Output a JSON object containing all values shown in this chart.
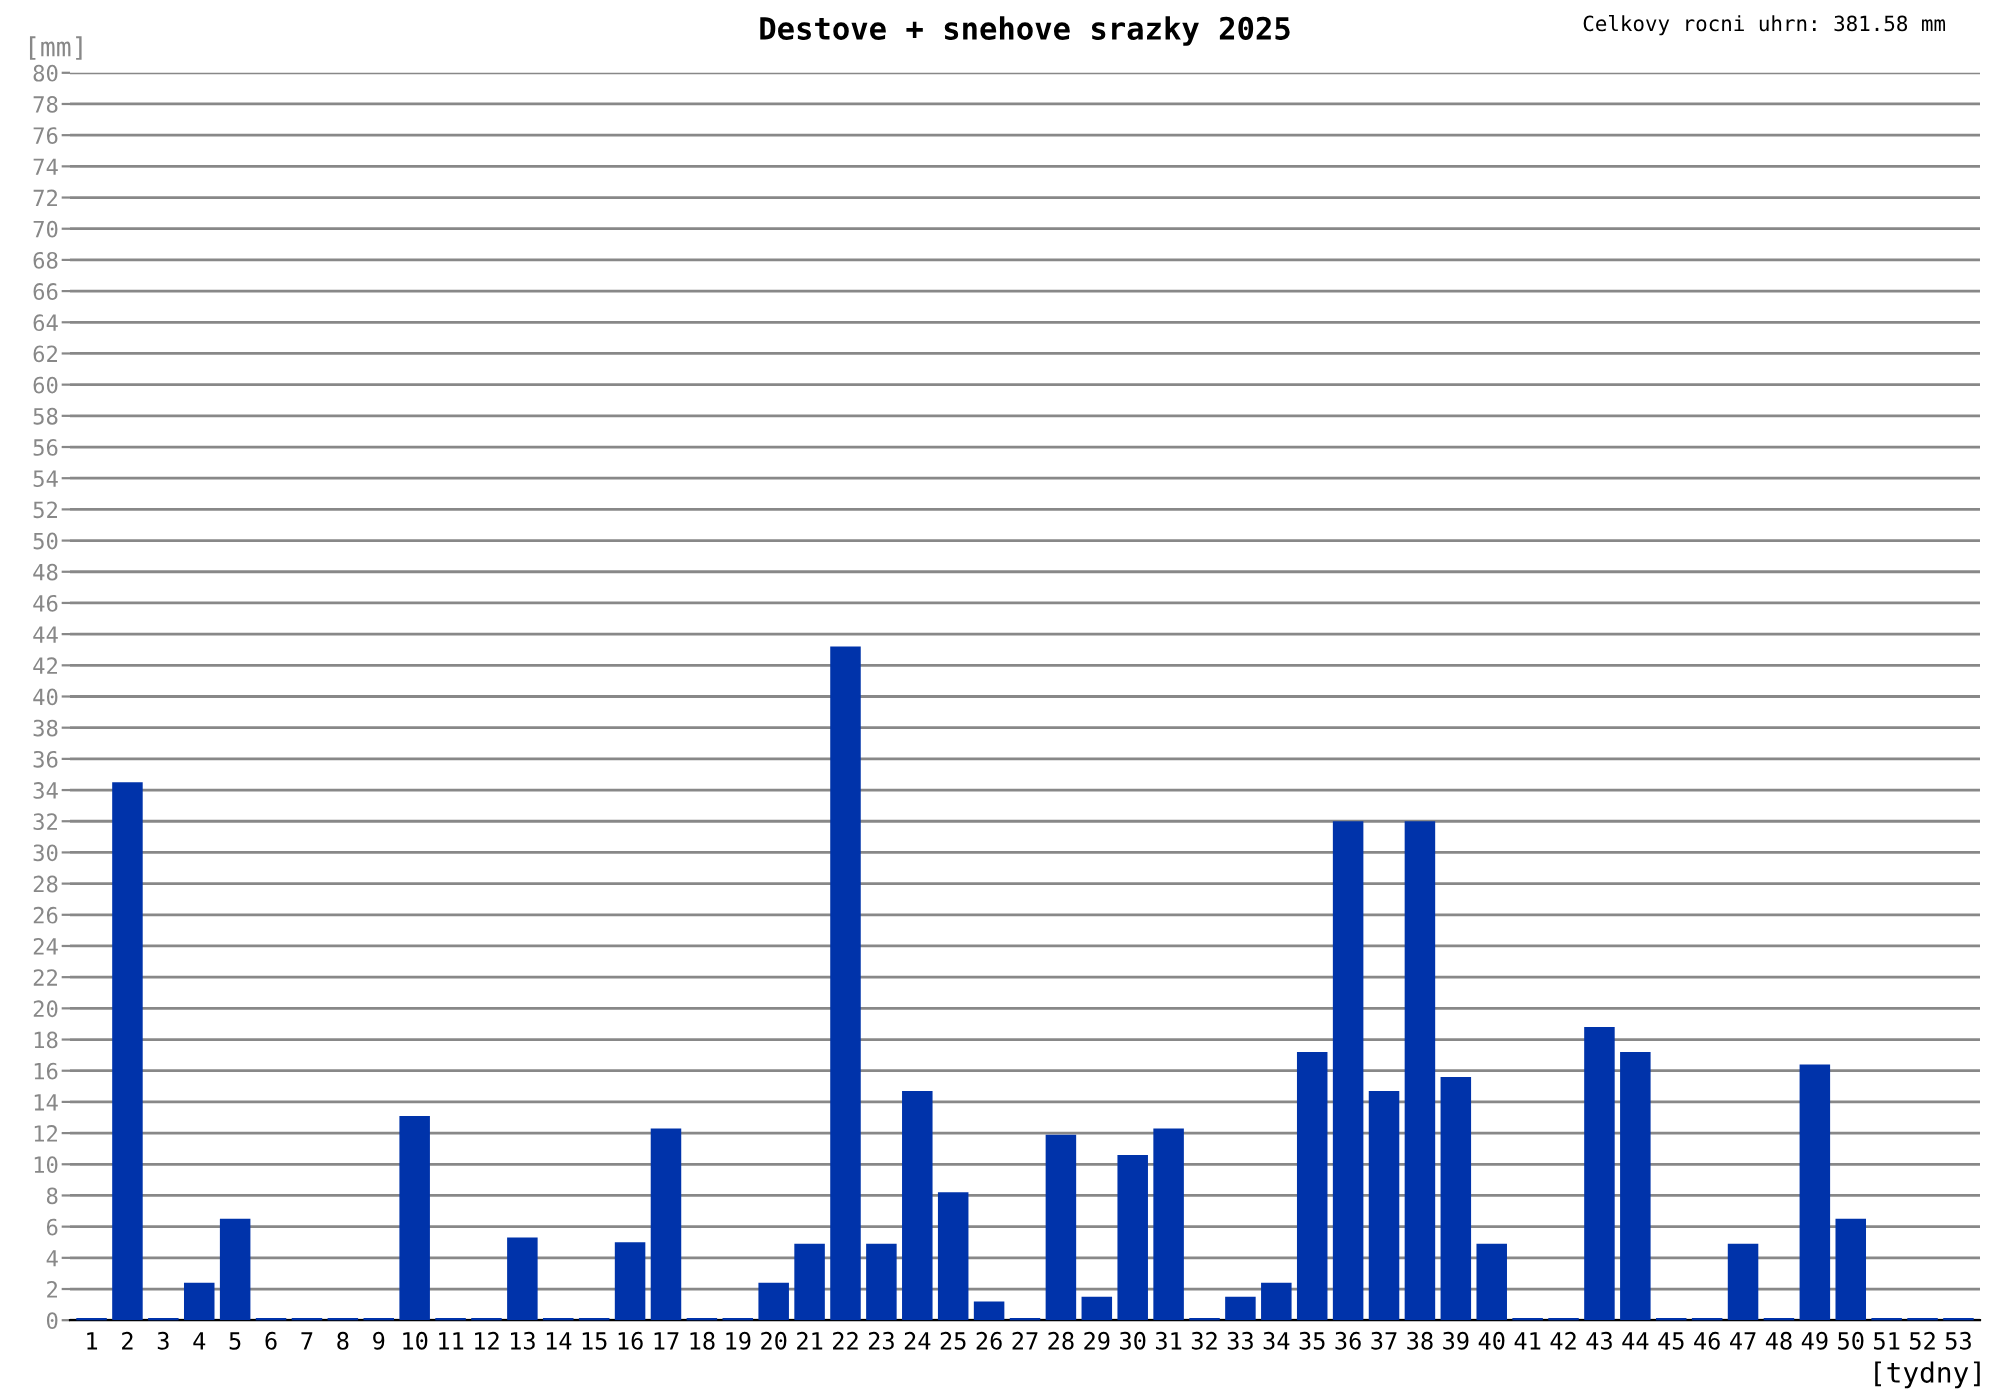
{
  "chart_data": {
    "type": "bar",
    "title": "Destove + snehove srazky 2025",
    "ylabel": "[mm]",
    "xlabel": "[tydny]",
    "annotations": [
      "Celkovy rocni uhrn: 381.58 mm"
    ],
    "categories": [
      "1",
      "2",
      "3",
      "4",
      "5",
      "6",
      "7",
      "8",
      "9",
      "10",
      "11",
      "12",
      "13",
      "14",
      "15",
      "16",
      "17",
      "18",
      "19",
      "20",
      "21",
      "22",
      "23",
      "24",
      "25",
      "26",
      "27",
      "28",
      "29",
      "30",
      "31",
      "32",
      "33",
      "34",
      "35",
      "36",
      "37",
      "38",
      "39",
      "40",
      "41",
      "42",
      "43",
      "44",
      "45",
      "46",
      "47",
      "48",
      "49",
      "50",
      "51",
      "52",
      "53"
    ],
    "values": [
      0,
      34.5,
      0,
      2.4,
      6.5,
      0,
      0,
      0,
      0,
      13.1,
      0,
      0,
      5.3,
      0,
      0,
      5.0,
      12.3,
      0,
      0,
      2.4,
      4.9,
      43.2,
      4.9,
      14.7,
      8.2,
      1.2,
      0,
      11.9,
      1.5,
      10.6,
      12.3,
      0,
      1.5,
      2.4,
      17.2,
      32.0,
      14.7,
      32.0,
      15.6,
      4.9,
      0,
      0,
      18.8,
      17.2,
      0,
      0,
      4.9,
      0,
      16.4,
      6.5,
      0,
      0,
      0
    ],
    "color": "#0033aa",
    "ylim": [
      0,
      80
    ],
    "yticks": [
      0,
      2,
      4,
      6,
      8,
      10,
      12,
      14,
      16,
      18,
      20,
      22,
      24,
      26,
      28,
      30,
      32,
      34,
      36,
      38,
      40,
      42,
      44,
      46,
      48,
      50,
      52,
      54,
      56,
      58,
      60,
      62,
      64,
      66,
      68,
      70,
      72,
      74,
      76,
      78,
      80
    ],
    "grid": "y",
    "legend": false
  }
}
